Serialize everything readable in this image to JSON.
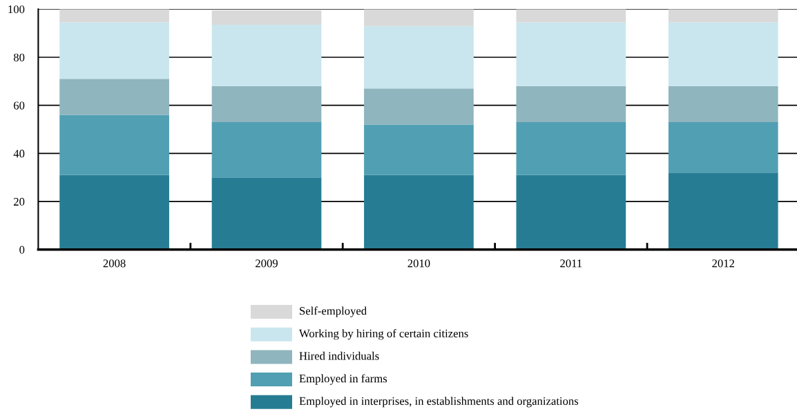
{
  "chart_data": {
    "type": "bar",
    "stacked": true,
    "categories": [
      "2008",
      "2009",
      "2010",
      "2011",
      "2012"
    ],
    "series": [
      {
        "name": "Employed in interprises, in establishments and organizations",
        "color": "#267d93",
        "values": [
          31,
          30,
          31,
          31,
          32
        ]
      },
      {
        "name": "Employed in farms",
        "color": "#519fb3",
        "values": [
          25,
          23,
          21,
          22,
          21
        ]
      },
      {
        "name": "Hired individuals",
        "color": "#8fb5be",
        "values": [
          15,
          15,
          15,
          15,
          15
        ]
      },
      {
        "name": "Working by hiring of certain citizens",
        "color": "#c9e6ee",
        "values": [
          23.5,
          25.5,
          26,
          26.5,
          26.5
        ]
      },
      {
        "name": "Self-employed",
        "color": "#d9d9d9",
        "values": [
          5.5,
          6,
          7,
          5.5,
          5.5
        ]
      }
    ],
    "ylim": [
      0,
      100
    ],
    "yticks": [
      0,
      20,
      40,
      60,
      80,
      100
    ],
    "grid": "y",
    "legend": "bottom"
  }
}
